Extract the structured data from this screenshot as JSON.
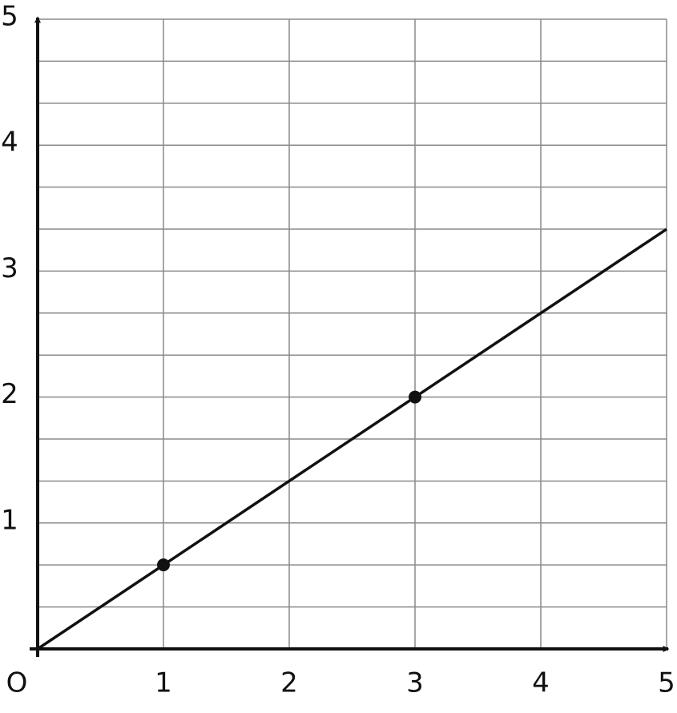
{
  "chart_data": {
    "type": "line",
    "xlim": [
      0,
      5
    ],
    "ylim": [
      0,
      5
    ],
    "xticks": [
      {
        "value": 0,
        "label": "O"
      },
      1,
      2,
      3,
      4,
      5
    ],
    "yticks": [
      1,
      2,
      3,
      4,
      5
    ],
    "yminorticks": [
      0.333,
      0.667,
      1.333,
      1.667,
      2.333,
      2.667,
      3.333,
      3.667,
      4.333,
      4.667
    ],
    "grid": true,
    "series": [
      {
        "type": "line",
        "color": "#111111",
        "x": [
          0,
          5
        ],
        "values": [
          0,
          3.333
        ]
      },
      {
        "type": "scatter",
        "color": "#111111",
        "x": [
          1,
          3
        ],
        "values": [
          0.667,
          2
        ]
      }
    ]
  }
}
